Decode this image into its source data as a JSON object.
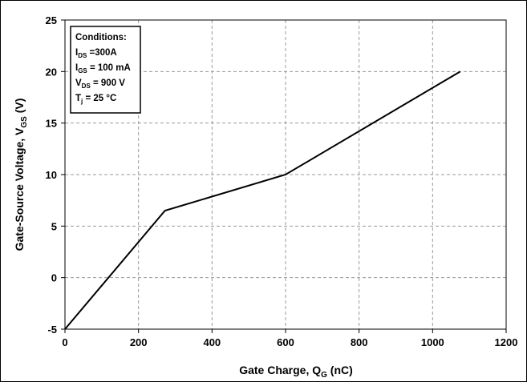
{
  "chart_data": {
    "type": "line",
    "xlabel": {
      "main": "Gate Charge, Q",
      "sub": "G",
      "unit": " (nC)"
    },
    "ylabel": {
      "main": "Gate-Source Voltage, V",
      "sub": "GS",
      "unit": " (V)"
    },
    "xlim": [
      0,
      1200
    ],
    "ylim": [
      -5,
      25
    ],
    "xticks": [
      0,
      200,
      400,
      600,
      800,
      1000,
      1200
    ],
    "yticks": [
      -5,
      0,
      5,
      10,
      15,
      20,
      25
    ],
    "grid": true,
    "series": [
      {
        "x": [
          0,
          272,
          600,
          1075
        ],
        "y": [
          -5,
          6.5,
          10,
          20
        ]
      }
    ],
    "annotation": {
      "title": "Conditions:",
      "lines": [
        {
          "main": "I",
          "sub": "DS",
          "rest": " =300A"
        },
        {
          "main": "I",
          "sub": "GS",
          "rest": " = 100 mA"
        },
        {
          "main": "V",
          "sub": "DS",
          "rest": " = 900 V"
        },
        {
          "main": "T",
          "sub": "j",
          "rest": " = 25 °C"
        }
      ]
    }
  }
}
